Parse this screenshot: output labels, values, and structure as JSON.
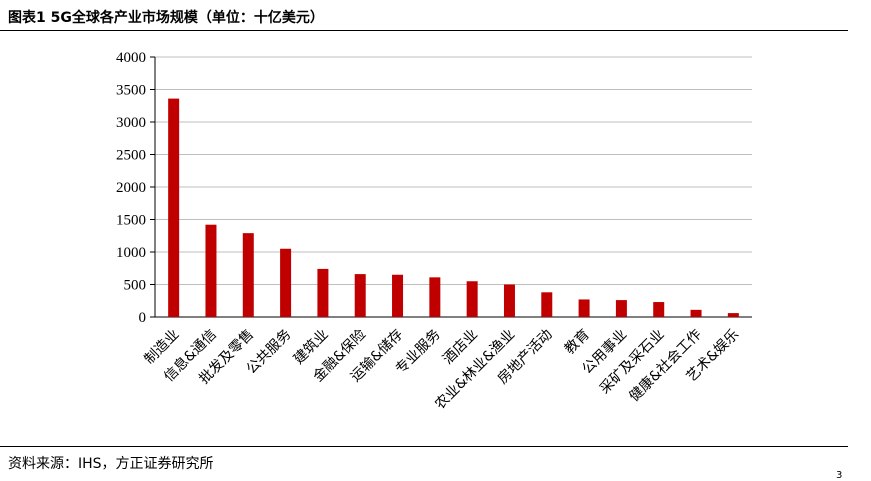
{
  "header": {
    "title": "图表1 5G全球各产业市场规模（单位：十亿美元）"
  },
  "footer": {
    "source": "资料来源：IHS，方正证券研究所",
    "page_number": "3"
  },
  "chart_data": {
    "type": "bar",
    "title": "",
    "xlabel": "",
    "ylabel": "",
    "ylim": [
      0,
      4000
    ],
    "yticks": [
      0,
      500,
      1000,
      1500,
      2000,
      2500,
      3000,
      3500,
      4000
    ],
    "grid": true,
    "color": "#c00000",
    "categories": [
      "制造业",
      "信息&通信",
      "批发及零售",
      "公共服务",
      "建筑业",
      "金融&保险",
      "运输&储存",
      "专业服务",
      "酒店业",
      "农业&林业&渔业",
      "房地产活动",
      "教育",
      "公用事业",
      "采矿及采石业",
      "健康&社会工作",
      "艺术&娱乐"
    ],
    "values": [
      3360,
      1420,
      1290,
      1050,
      740,
      660,
      650,
      610,
      550,
      500,
      380,
      270,
      260,
      230,
      110,
      60
    ]
  }
}
